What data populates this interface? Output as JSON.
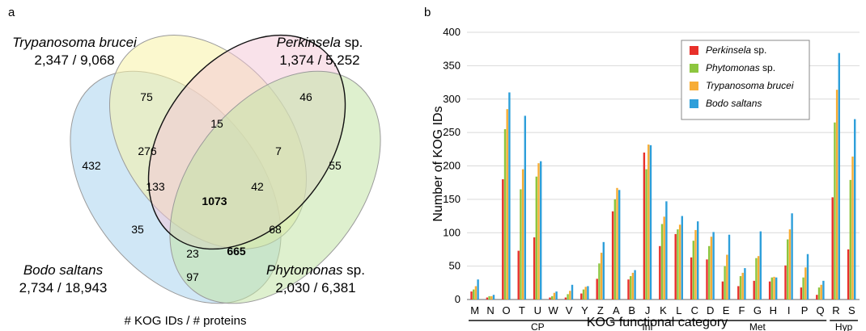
{
  "panel_a": {
    "label": "a",
    "species": [
      {
        "key": "brucei",
        "name_italic": "Trypanosoma brucei",
        "name_plain": "",
        "counts": "2,347 / 9,068"
      },
      {
        "key": "perkinsela",
        "name_italic": "Perkinsela",
        "name_plain": " sp.",
        "counts": "1,374 / 5,252"
      },
      {
        "key": "bodo",
        "name_italic": "Bodo saltans",
        "name_plain": "",
        "counts": "2,734 / 18,943"
      },
      {
        "key": "phyto",
        "name_italic": "Phytomonas",
        "name_plain": " sp.",
        "counts": "2,030 / 6,381"
      }
    ],
    "regions": [
      {
        "key": "brucei_only",
        "value": "75"
      },
      {
        "key": "perk_only",
        "value": "46"
      },
      {
        "key": "bodo_only",
        "value": "432"
      },
      {
        "key": "phyto_only",
        "value": "55"
      },
      {
        "key": "brucei_perk",
        "value": "15"
      },
      {
        "key": "bodo_brucei",
        "value": "276"
      },
      {
        "key": "perk_phyto",
        "value": "7"
      },
      {
        "key": "bodo_brucei_perk",
        "value": "133"
      },
      {
        "key": "brucei_perk_phyto",
        "value": "42"
      },
      {
        "key": "all_four",
        "value": "1073",
        "bold": true
      },
      {
        "key": "bodo_perk",
        "value": "35"
      },
      {
        "key": "brucei_phyto",
        "value": "68"
      },
      {
        "key": "bodo_perk_phyto",
        "value": "23"
      },
      {
        "key": "bodo_brucei_phyto",
        "value": "665",
        "bold": true
      },
      {
        "key": "bodo_phyto",
        "value": "97"
      }
    ],
    "caption": "# KOG IDs / # proteins",
    "colors": {
      "brucei": "#f7f2a6",
      "perkinsela": "#f4c6d6",
      "bodo": "#a9d3ee",
      "phyto": "#c3e3a6"
    }
  },
  "panel_b": {
    "label": "b",
    "chart_data": {
      "type": "bar",
      "categories": [
        "M",
        "N",
        "O",
        "T",
        "U",
        "W",
        "V",
        "Y",
        "Z",
        "A",
        "B",
        "J",
        "K",
        "L",
        "C",
        "D",
        "E",
        "F",
        "G",
        "H",
        "I",
        "P",
        "Q",
        "R",
        "S"
      ],
      "series": [
        {
          "name": "Perkinsela",
          "name_suffix": " sp.",
          "color": "#e8302a",
          "values": [
            12,
            3,
            180,
            73,
            93,
            3,
            3,
            9,
            31,
            132,
            30,
            220,
            80,
            98,
            63,
            60,
            27,
            20,
            28,
            27,
            51,
            18,
            7,
            153,
            75
          ]
        },
        {
          "name": "Phytomonas",
          "name_suffix": " sp.",
          "color": "#8dc63f",
          "values": [
            15,
            5,
            255,
            165,
            184,
            5,
            8,
            15,
            54,
            150,
            35,
            195,
            113,
            105,
            88,
            80,
            50,
            35,
            62,
            33,
            90,
            33,
            18,
            265,
            179
          ]
        },
        {
          "name": "Trypanosoma brucei",
          "name_suffix": "",
          "color": "#f7ad35",
          "values": [
            20,
            5,
            285,
            195,
            204,
            10,
            13,
            19,
            70,
            167,
            40,
            232,
            124,
            112,
            104,
            94,
            67,
            40,
            65,
            34,
            105,
            48,
            22,
            314,
            214
          ]
        },
        {
          "name": "Bodo saltans",
          "name_suffix": "",
          "color": "#2e9fda",
          "values": [
            30,
            7,
            310,
            275,
            207,
            12,
            22,
            20,
            86,
            164,
            44,
            231,
            147,
            125,
            117,
            101,
            97,
            47,
            102,
            33,
            129,
            68,
            28,
            369,
            270
          ]
        }
      ],
      "groups": [
        {
          "label": "CP",
          "from": 0,
          "to": 8
        },
        {
          "label": "Inf",
          "from": 9,
          "to": 13
        },
        {
          "label": "Met",
          "from": 14,
          "to": 22
        },
        {
          "label": "Hyp",
          "from": 23,
          "to": 24
        }
      ],
      "ylim": [
        0,
        400
      ],
      "yticks": [
        0,
        50,
        100,
        150,
        200,
        250,
        300,
        350,
        400
      ],
      "xlabel": "KOG functional category",
      "ylabel": "Number of KOG IDs",
      "grid": true,
      "legend_position": "top-right"
    }
  }
}
